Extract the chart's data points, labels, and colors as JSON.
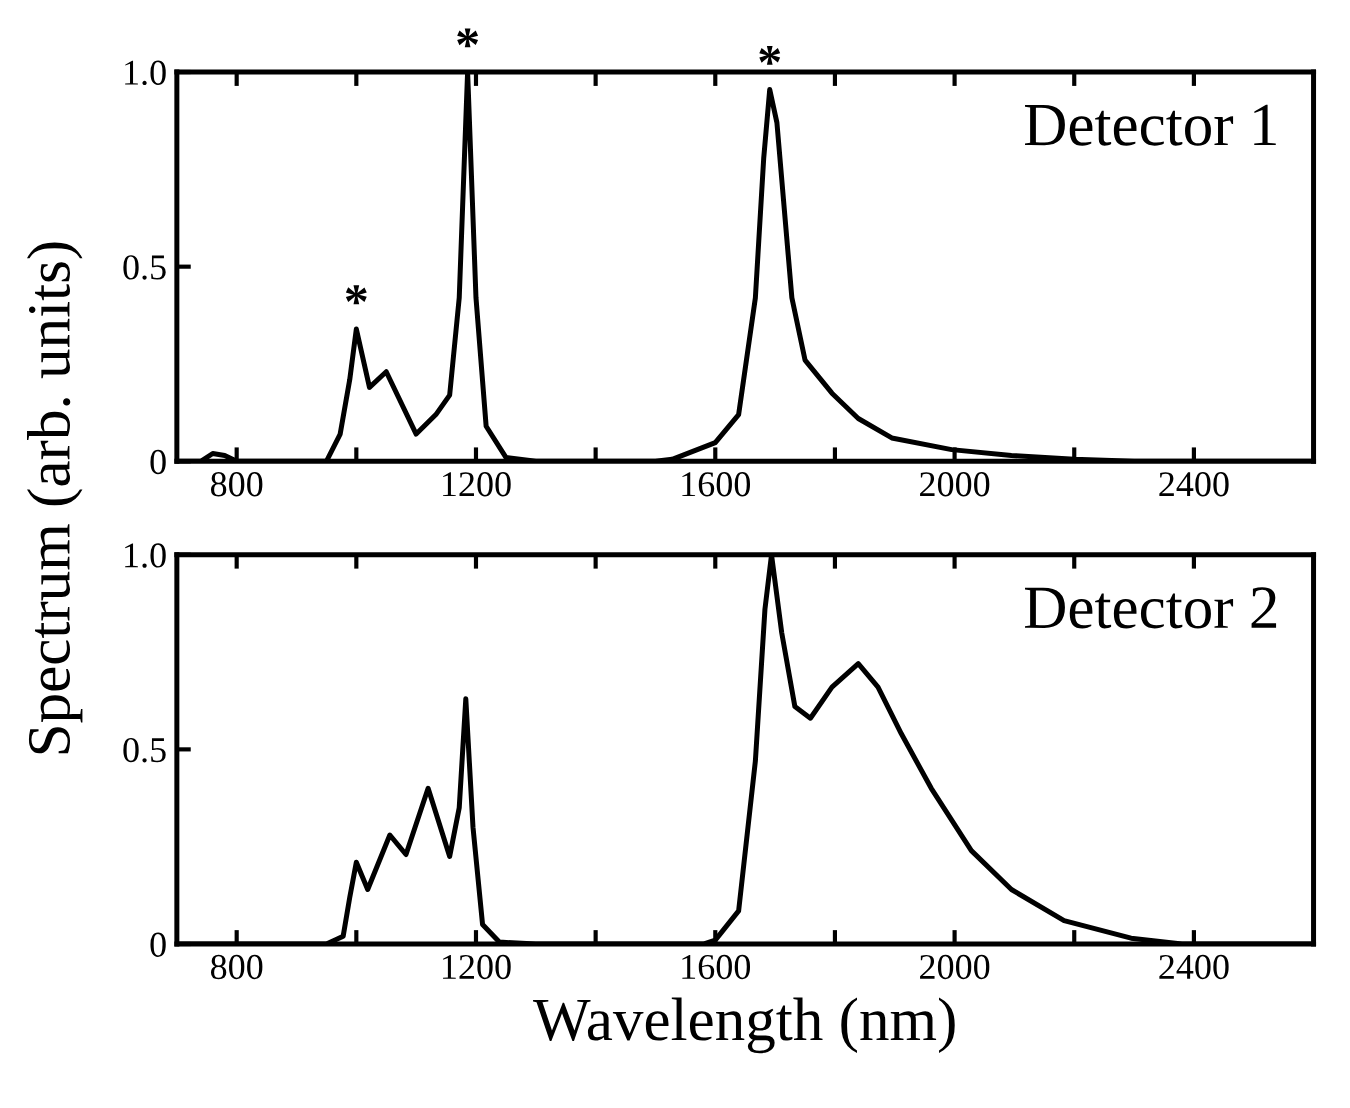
{
  "chart_data": [
    {
      "type": "line",
      "ylabel": "Spectrum (arb. units)",
      "annotations": [
        {
          "text": "*",
          "x": 1000,
          "y": 0.34
        },
        {
          "text": "*",
          "x": 1186,
          "y": 1.0
        },
        {
          "text": "*",
          "x": 1691,
          "y": 0.955
        },
        "Detector 1"
      ],
      "xlim": [
        700,
        2600
      ],
      "xticks": [
        800,
        {
          "value": 1000,
          "label": null
        },
        1200,
        {
          "value": 1400,
          "label": null
        },
        1600,
        {
          "value": 1800,
          "label": null
        },
        2000,
        {
          "value": 2200,
          "label": null
        },
        2400
      ],
      "ylim": [
        0,
        1.0
      ],
      "yticks": [
        0,
        0.5,
        {
          "value": 1.0,
          "label": "1.0"
        }
      ],
      "grid": false,
      "legend": false,
      "line_style": "solid",
      "series": [
        {
          "color": "#000000",
          "x": [
            700,
            740,
            760,
            780,
            800,
            950,
            973,
            989,
            1000,
            1022,
            1050,
            1100,
            1133,
            1156,
            1172,
            1186,
            1200,
            1217,
            1250,
            1300,
            1500,
            1528,
            1600,
            1639,
            1667,
            1681,
            1691,
            1703,
            1728,
            1750,
            1795,
            1839,
            1895,
            1995,
            2095,
            2200,
            2300,
            2600
          ],
          "values": [
            0,
            0,
            0.02,
            0.015,
            0,
            0,
            0.07,
            0.21,
            0.34,
            0.19,
            0.23,
            0.07,
            0.12,
            0.17,
            0.42,
            1.0,
            0.42,
            0.09,
            0.01,
            0,
            0,
            0.005,
            0.048,
            0.12,
            0.42,
            0.78,
            0.955,
            0.87,
            0.42,
            0.26,
            0.175,
            0.11,
            0.06,
            0.03,
            0.015,
            0.005,
            0,
            0
          ]
        }
      ]
    },
    {
      "type": "line",
      "xlabel": "Wavelength (nm)",
      "annotations": [
        "Detector 2"
      ],
      "xlim": [
        700,
        2600
      ],
      "xticks": [
        800,
        {
          "value": 1000,
          "label": null
        },
        1200,
        {
          "value": 1400,
          "label": null
        },
        1600,
        {
          "value": 1800,
          "label": null
        },
        2000,
        {
          "value": 2200,
          "label": null
        },
        2400
      ],
      "ylim": [
        0,
        1.0
      ],
      "yticks": [
        0,
        0.5,
        {
          "value": 1.0,
          "label": "1.0"
        }
      ],
      "grid": false,
      "legend": false,
      "line_style": "solid",
      "series": [
        {
          "color": "#000000",
          "x": [
            700,
            950,
            978,
            989,
            1000,
            1019,
            1056,
            1083,
            1120,
            1156,
            1172,
            1183,
            1195,
            1211,
            1239,
            1300,
            1580,
            1600,
            1639,
            1667,
            1683,
            1694,
            1711,
            1733,
            1759,
            1795,
            1839,
            1872,
            1911,
            1961,
            2028,
            2095,
            2183,
            2295,
            2380,
            2600
          ],
          "values": [
            0,
            0,
            0.02,
            0.12,
            0.21,
            0.14,
            0.28,
            0.23,
            0.4,
            0.225,
            0.35,
            0.63,
            0.3,
            0.05,
            0.005,
            0,
            0,
            0.01,
            0.085,
            0.47,
            0.86,
            1.0,
            0.8,
            0.61,
            0.58,
            0.66,
            0.72,
            0.66,
            0.54,
            0.4,
            0.24,
            0.14,
            0.06,
            0.015,
            0,
            0
          ]
        }
      ]
    }
  ]
}
